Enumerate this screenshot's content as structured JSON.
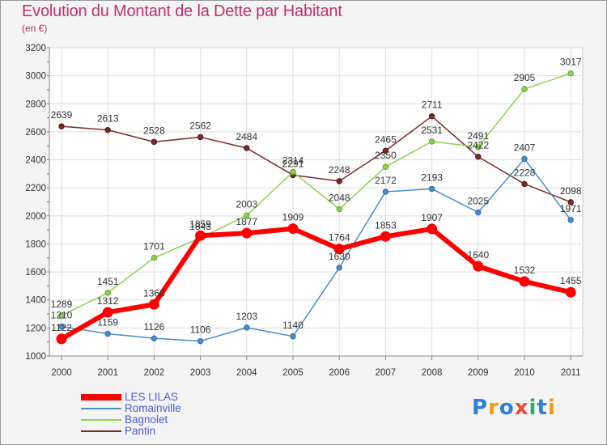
{
  "header": {
    "title": "Evolution du Montant de la Dette par Habitant",
    "subtitle": "(en €)"
  },
  "brand": {
    "logo_text": "Proxiti"
  },
  "chart_data": {
    "type": "line",
    "title": "Evolution du Montant de la Dette par Habitant",
    "ylabel": "(en €)",
    "xlabel": "",
    "x": [
      "2000",
      "2001",
      "2002",
      "2003",
      "2004",
      "2005",
      "2006",
      "2007",
      "2008",
      "2009",
      "2010",
      "2011"
    ],
    "ylim": [
      1000,
      3200
    ],
    "yticks": [
      1000,
      1200,
      1400,
      1600,
      1800,
      2000,
      2200,
      2400,
      2600,
      2800,
      3000,
      3200
    ],
    "grid": true,
    "legend": "bottom-left",
    "series": [
      {
        "name": "LES LILAS",
        "color": "#ff0000",
        "values": [
          1122,
          1312,
          1368,
          1859,
          1877,
          1909,
          1764,
          1853,
          1907,
          1640,
          1532,
          1455
        ]
      },
      {
        "name": "Romainville",
        "color": "#4a8ec9",
        "values": [
          1210,
          1159,
          1126,
          1106,
          1203,
          1140,
          1630,
          2172,
          2193,
          2025,
          2407,
          1971
        ]
      },
      {
        "name": "Bagnolet",
        "color": "#8fd14f",
        "values": [
          1289,
          1451,
          1701,
          1843,
          2003,
          2314,
          2048,
          2350,
          2531,
          2491,
          2905,
          3017
        ]
      },
      {
        "name": "Pantin",
        "color": "#7a2a2a",
        "values": [
          2639,
          2613,
          2528,
          2562,
          2484,
          2291,
          2248,
          2465,
          2711,
          2422,
          2228,
          2098
        ]
      }
    ]
  }
}
